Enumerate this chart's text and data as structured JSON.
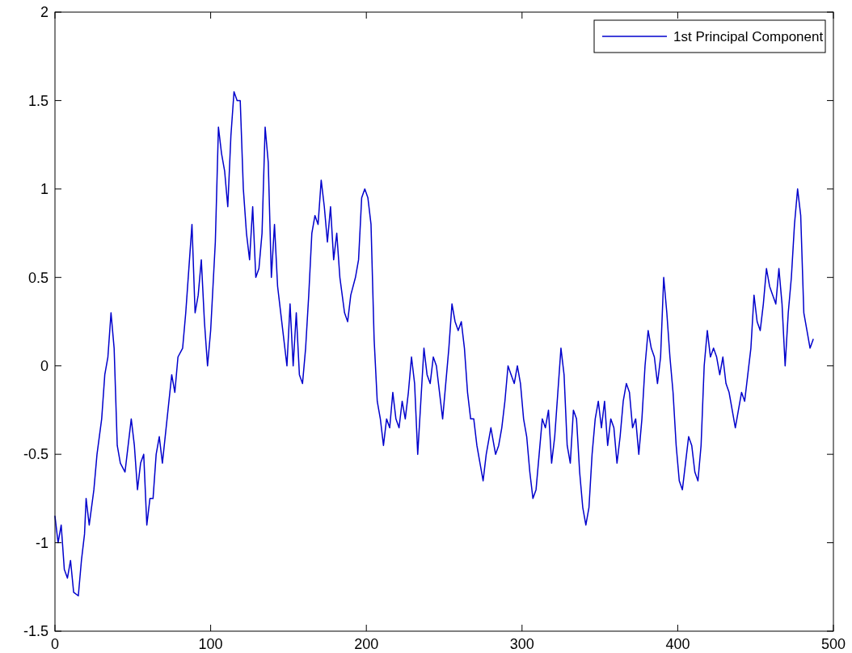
{
  "chart_data": {
    "type": "line",
    "xlim": [
      0,
      500
    ],
    "xticks": [
      0,
      100,
      200,
      300,
      400,
      500
    ],
    "ylim": [
      -1.5,
      2
    ],
    "yticks": [
      -1.5,
      -1,
      -0.5,
      0,
      0.5,
      1,
      1.5,
      2
    ],
    "grid": false,
    "legend": "top right",
    "line_style": "solid",
    "marker": "none",
    "series": [
      {
        "name": "1st Principal Component",
        "color": "#0000cc",
        "x": [
          0,
          2,
          4,
          6,
          8,
          10,
          12,
          15,
          17,
          19,
          20,
          22,
          25,
          27,
          30,
          32,
          34,
          36,
          38,
          40,
          42,
          45,
          47,
          49,
          51,
          53,
          55,
          57,
          59,
          61,
          63,
          65,
          67,
          69,
          72,
          75,
          77,
          79,
          82,
          84,
          86,
          88,
          90,
          92,
          94,
          96,
          98,
          100,
          103,
          105,
          107,
          109,
          111,
          113,
          115,
          117,
          119,
          121,
          123,
          125,
          127,
          129,
          131,
          133,
          135,
          137,
          139,
          141,
          143,
          145,
          147,
          149,
          151,
          153,
          155,
          157,
          159,
          161,
          163,
          165,
          167,
          169,
          171,
          173,
          175,
          177,
          179,
          181,
          183,
          186,
          188,
          190,
          193,
          195,
          197,
          199,
          201,
          203,
          205,
          207,
          209,
          211,
          213,
          215,
          217,
          219,
          221,
          223,
          225,
          227,
          229,
          231,
          233,
          235,
          237,
          239,
          241,
          243,
          245,
          247,
          249,
          251,
          253,
          255,
          257,
          259,
          261,
          263,
          265,
          267,
          269,
          271,
          273,
          275,
          277,
          280,
          283,
          285,
          287,
          289,
          291,
          293,
          295,
          297,
          299,
          301,
          303,
          305,
          307,
          309,
          311,
          313,
          315,
          317,
          319,
          321,
          323,
          325,
          327,
          329,
          331,
          333,
          335,
          337,
          339,
          341,
          343,
          345,
          347,
          349,
          351,
          353,
          355,
          357,
          359,
          361,
          363,
          365,
          367,
          369,
          371,
          373,
          375,
          377,
          379,
          381,
          383,
          385,
          387,
          389,
          391,
          393,
          395,
          397,
          399,
          401,
          403,
          405,
          407,
          409,
          411,
          413,
          415,
          417,
          419,
          421,
          423,
          425,
          427,
          429,
          431,
          433,
          435,
          437,
          439,
          441,
          443,
          445,
          447,
          449,
          451,
          453,
          455,
          457,
          459,
          461,
          463,
          465,
          467,
          469,
          471,
          473,
          475,
          477,
          479,
          481,
          483,
          485,
          487
        ],
        "values": [
          -0.85,
          -1.0,
          -0.9,
          -1.15,
          -1.2,
          -1.1,
          -1.28,
          -1.3,
          -1.1,
          -0.95,
          -0.75,
          -0.9,
          -0.7,
          -0.5,
          -0.3,
          -0.05,
          0.05,
          0.3,
          0.1,
          -0.45,
          -0.55,
          -0.6,
          -0.45,
          -0.3,
          -0.45,
          -0.7,
          -0.55,
          -0.5,
          -0.9,
          -0.75,
          -0.75,
          -0.5,
          -0.4,
          -0.55,
          -0.3,
          -0.05,
          -0.15,
          0.05,
          0.1,
          0.3,
          0.55,
          0.8,
          0.3,
          0.4,
          0.6,
          0.25,
          0.0,
          0.2,
          0.7,
          1.35,
          1.2,
          1.1,
          0.9,
          1.3,
          1.55,
          1.5,
          1.5,
          1.0,
          0.75,
          0.6,
          0.9,
          0.5,
          0.55,
          0.75,
          1.35,
          1.15,
          0.5,
          0.8,
          0.45,
          0.3,
          0.15,
          0.0,
          0.35,
          0.0,
          0.3,
          -0.05,
          -0.1,
          0.1,
          0.4,
          0.75,
          0.85,
          0.8,
          1.05,
          0.9,
          0.7,
          0.9,
          0.6,
          0.75,
          0.5,
          0.3,
          0.25,
          0.4,
          0.5,
          0.6,
          0.95,
          1.0,
          0.95,
          0.8,
          0.15,
          -0.2,
          -0.3,
          -0.45,
          -0.3,
          -0.35,
          -0.15,
          -0.3,
          -0.35,
          -0.2,
          -0.3,
          -0.15,
          0.05,
          -0.1,
          -0.5,
          -0.2,
          0.1,
          -0.05,
          -0.1,
          0.05,
          0.0,
          -0.15,
          -0.3,
          -0.1,
          0.1,
          0.35,
          0.25,
          0.2,
          0.25,
          0.1,
          -0.15,
          -0.3,
          -0.3,
          -0.45,
          -0.55,
          -0.65,
          -0.5,
          -0.35,
          -0.5,
          -0.45,
          -0.35,
          -0.2,
          0.0,
          -0.05,
          -0.1,
          0.0,
          -0.1,
          -0.3,
          -0.4,
          -0.6,
          -0.75,
          -0.7,
          -0.5,
          -0.3,
          -0.35,
          -0.25,
          -0.55,
          -0.4,
          -0.15,
          0.1,
          -0.05,
          -0.45,
          -0.55,
          -0.25,
          -0.3,
          -0.6,
          -0.8,
          -0.9,
          -0.8,
          -0.5,
          -0.3,
          -0.2,
          -0.35,
          -0.2,
          -0.45,
          -0.3,
          -0.35,
          -0.55,
          -0.4,
          -0.2,
          -0.1,
          -0.15,
          -0.35,
          -0.3,
          -0.5,
          -0.3,
          0.0,
          0.2,
          0.1,
          0.05,
          -0.1,
          0.05,
          0.5,
          0.3,
          0.05,
          -0.15,
          -0.45,
          -0.65,
          -0.7,
          -0.55,
          -0.4,
          -0.45,
          -0.6,
          -0.65,
          -0.45,
          0.0,
          0.2,
          0.05,
          0.1,
          0.05,
          -0.05,
          0.05,
          -0.1,
          -0.15,
          -0.25,
          -0.35,
          -0.25,
          -0.15,
          -0.2,
          -0.05,
          0.1,
          0.4,
          0.25,
          0.2,
          0.35,
          0.55,
          0.45,
          0.4,
          0.35,
          0.55,
          0.35,
          0.0,
          0.3,
          0.5,
          0.8,
          1.0,
          0.85,
          0.3,
          0.2,
          0.1,
          0.15
        ]
      }
    ]
  }
}
